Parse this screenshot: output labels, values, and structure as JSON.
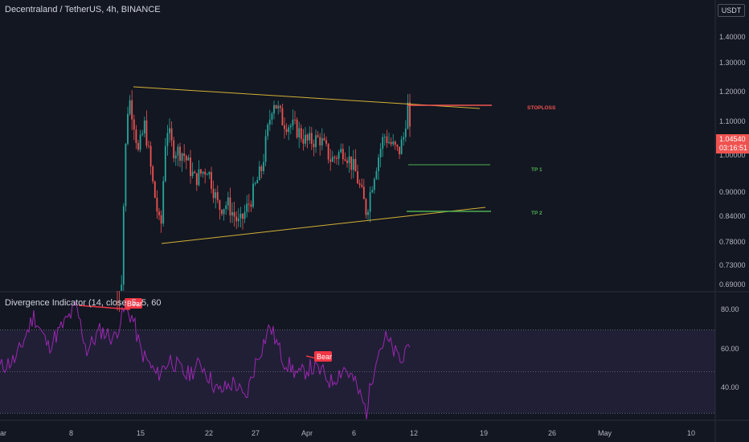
{
  "header": {
    "title": "Decentraland / TetherUS, 4h, BINANCE",
    "currency_button": "USDT"
  },
  "indicator": {
    "title": "Divergence Indicator (14, close, 5, 5, 60"
  },
  "colors": {
    "background": "#131722",
    "up_candle": "#26a69a",
    "down_candle": "#ef5350",
    "trendline": "#d4b135",
    "stoploss": "#f05350",
    "target": "#4caf50",
    "rsi_line": "#9c27b0",
    "bear_label": "#f23645"
  },
  "chart_data": [
    {
      "type": "candlestick",
      "title": "Decentraland / TetherUS, 4h, BINANCE",
      "y_scale": "log",
      "ylim": [
        0.685,
        1.52
      ],
      "x_ticks": [
        "ar",
        "8",
        "15",
        "22",
        "27",
        "Apr",
        "6",
        "12",
        "19",
        "26",
        "May",
        "10"
      ],
      "y_ticks": [
        "1.40000",
        "1.30000",
        "1.20000",
        "1.10000",
        "1.00000",
        "0.90000",
        "0.84000",
        "0.78000",
        "0.73000",
        "0.69000"
      ],
      "last_price": "1.04540",
      "countdown": "03:16:51",
      "annotations": [
        {
          "label": "STOPLOSS",
          "value": 1.16
        },
        {
          "label": "TP 1",
          "value": 0.975
        },
        {
          "label": "TP 2",
          "value": 0.845
        }
      ]
    },
    {
      "type": "line",
      "title": "Divergence Indicator (14, close, 5, 5, 60",
      "ylim": [
        27,
        88
      ],
      "y_ticks": [
        "80.00",
        "60.00",
        "40.00"
      ],
      "band": [
        30,
        70
      ],
      "midline": 50,
      "labels": [
        "Bear",
        "Bear"
      ]
    }
  ]
}
